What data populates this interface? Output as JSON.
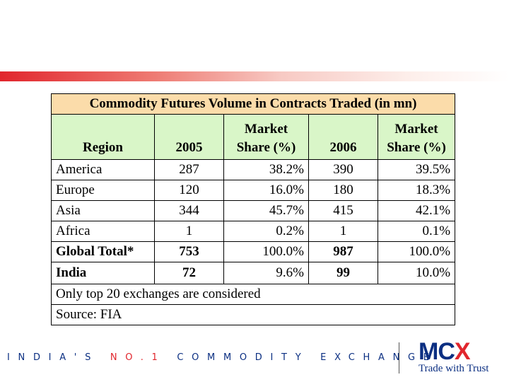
{
  "table": {
    "title": "Commodity Futures Volume in Contracts Traded (in mn)",
    "headers": {
      "region": "Region",
      "y2005": "2005",
      "share_top_2005": "Market",
      "share_bottom_2005": "Share (%)",
      "y2006": "2006",
      "share_top_2006": "Market",
      "share_bottom_2006": "Share (%)"
    },
    "rows": [
      {
        "region": "America",
        "v2005": "287",
        "s2005": "38.2%",
        "v2006": "390",
        "s2006": "39.5%"
      },
      {
        "region": "Europe",
        "v2005": "120",
        "s2005": "16.0%",
        "v2006": "180",
        "s2006": "18.3%"
      },
      {
        "region": "Asia",
        "v2005": "344",
        "s2005": "45.7%",
        "v2006": "415",
        "s2006": "42.1%"
      },
      {
        "region": "Africa",
        "v2005": "1",
        "s2005": "0.2%",
        "v2006": "1",
        "s2006": "0.1%"
      },
      {
        "region": "Global Total*",
        "v2005": "753",
        "s2005": "100.0%",
        "v2006": "987",
        "s2006": "100.0%"
      },
      {
        "region": "India",
        "v2005": "72",
        "s2005": "9.6%",
        "v2006": "99",
        "s2006": "10.0%"
      }
    ],
    "note": "Only top 20 exchanges are considered",
    "source": "Source: FIA"
  },
  "footer": {
    "tagline_part1": "INDIA'S ",
    "tagline_part2": "NO.1",
    "tagline_part3": " COMMODITY EXCHANGE"
  },
  "logo": {
    "mark_mc": "MC",
    "mark_x": "X",
    "tagline": "Trade with Trust"
  },
  "colors": {
    "brand_blue": "#0b2f82",
    "brand_red": "#e1262d",
    "title_fill": "#fbdcaa",
    "header_fill": "#d9f6c8"
  }
}
